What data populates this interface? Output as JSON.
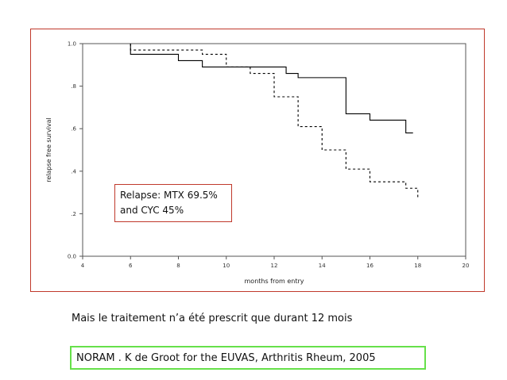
{
  "colors": {
    "frame_border": "#c0392b",
    "citation_border": "#66e04a",
    "line": "#000000"
  },
  "annotation": {
    "line1": "Relapse: MTX 69.5%",
    "line2": "and CYC 45%"
  },
  "note": "Mais le traitement n’a été prescrit que durant 12 mois",
  "citation": "NORAM . K de Groot for the EUVAS, Arthritis Rheum, 2005",
  "chart_data": {
    "type": "line",
    "title": "",
    "xlabel": "months from entry",
    "ylabel": "relapse free survival",
    "xlim": [
      4,
      20
    ],
    "ylim": [
      0,
      1
    ],
    "x_ticks": [
      "4",
      "6",
      "8",
      "10",
      "12",
      "14",
      "16",
      "18",
      "20"
    ],
    "y_ticks": [
      "0.0",
      ".2",
      ".4",
      ".6",
      ".8",
      "1.0"
    ],
    "x_tick_values": [
      4,
      6,
      8,
      10,
      12,
      14,
      16,
      18,
      20
    ],
    "y_tick_values": [
      0,
      0.2,
      0.4,
      0.6,
      0.8,
      1.0
    ],
    "grid": false,
    "series": [
      {
        "style": "solid",
        "x": [
          6,
          6,
          8,
          9,
          12.5,
          13,
          15,
          16,
          17.5,
          17.8
        ],
        "y": [
          1.0,
          0.95,
          0.92,
          0.89,
          0.86,
          0.84,
          0.67,
          0.64,
          0.58,
          0.58
        ]
      },
      {
        "style": "dashed",
        "x": [
          6,
          6,
          9,
          10,
          11,
          12,
          13,
          14,
          15,
          16,
          17.5,
          18,
          18
        ],
        "y": [
          1.0,
          0.97,
          0.95,
          0.89,
          0.86,
          0.75,
          0.61,
          0.5,
          0.41,
          0.35,
          0.32,
          0.3,
          0.27
        ]
      }
    ]
  }
}
